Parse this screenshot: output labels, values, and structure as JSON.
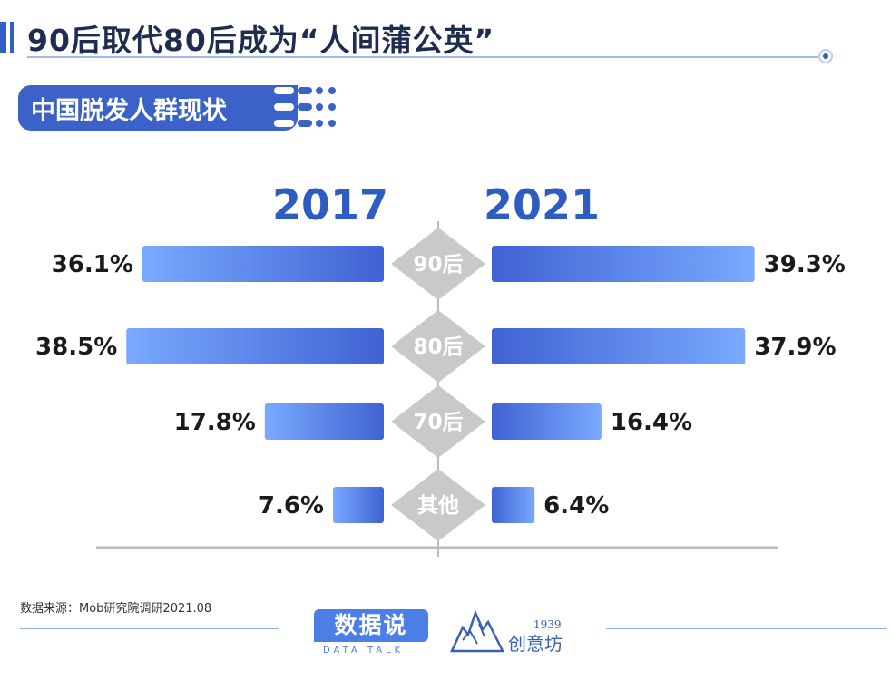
{
  "page": {
    "title": "90后取代80后成为“人间蒲公英”",
    "subtitle": "中国脱发人群现状",
    "source": "数据来源：Mob研究院调研2021.08",
    "logo_text": "数据说",
    "logo_subtext": "DATA TALK",
    "brand_year": "1939",
    "brand_name": "创意坊"
  },
  "colors": {
    "accent": "#2f5fc7",
    "bar_light": "#79a8ff",
    "bar_dark": "#3f63d3",
    "diamond": "#c9c9c9",
    "axis": "#bdbdbd"
  },
  "chart_data": {
    "type": "bar",
    "orientation": "horizontal-diverging",
    "title": "中国脱发人群现状",
    "unit": "%",
    "categories": [
      "90后",
      "80后",
      "70后",
      "其他"
    ],
    "series": [
      {
        "name": "2017",
        "values": [
          36.1,
          38.5,
          17.8,
          7.6
        ],
        "labels": [
          "36.1%",
          "38.5%",
          "17.8%",
          "7.6%"
        ]
      },
      {
        "name": "2021",
        "values": [
          39.3,
          37.9,
          16.4,
          6.4
        ],
        "labels": [
          "39.3%",
          "37.9%",
          "16.4%",
          "6.4%"
        ]
      }
    ],
    "xlim": [
      0,
      40
    ],
    "grid": false,
    "legend": "top"
  }
}
